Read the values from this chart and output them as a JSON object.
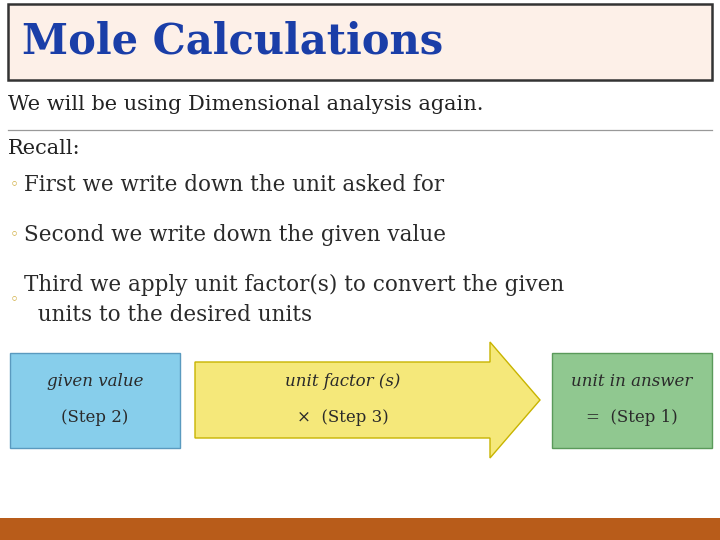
{
  "title": "Mole Calculations",
  "title_color": "#1a3ea8",
  "title_bg": "#fdf0e8",
  "title_border": "#333333",
  "body_bg": "#ffffff",
  "line1": "We will be using Dimensional analysis again.",
  "line1_color": "#222222",
  "recall_label": "Recall:",
  "recall_color": "#222222",
  "bullet_color": "#c8a020",
  "bullet_text_color": "#2a2a2a",
  "bullets": [
    "First we write down the unit asked for",
    "Second we write down the given value",
    "Third we apply unit factor(s) to convert the given\n  units to the desired units"
  ],
  "box1_label": "given value",
  "box1_sublabel": "(Step 2)",
  "box1_bg": "#87ceeb",
  "box1_border": "#5a9abf",
  "box2_label": "unit factor (s)",
  "box2_sublabel": "×  (Step 3)",
  "box2_bg": "#f5e87a",
  "box2_border": "#c8b400",
  "box3_label": "unit in answer",
  "box3_sublabel": "=  (Step 1)",
  "box3_bg": "#90c890",
  "box3_border": "#5a9a5a",
  "box_text_color": "#2a2a2a",
  "bottom_bar_color": "#b85c1a",
  "figw": 7.2,
  "figh": 5.4,
  "dpi": 100
}
